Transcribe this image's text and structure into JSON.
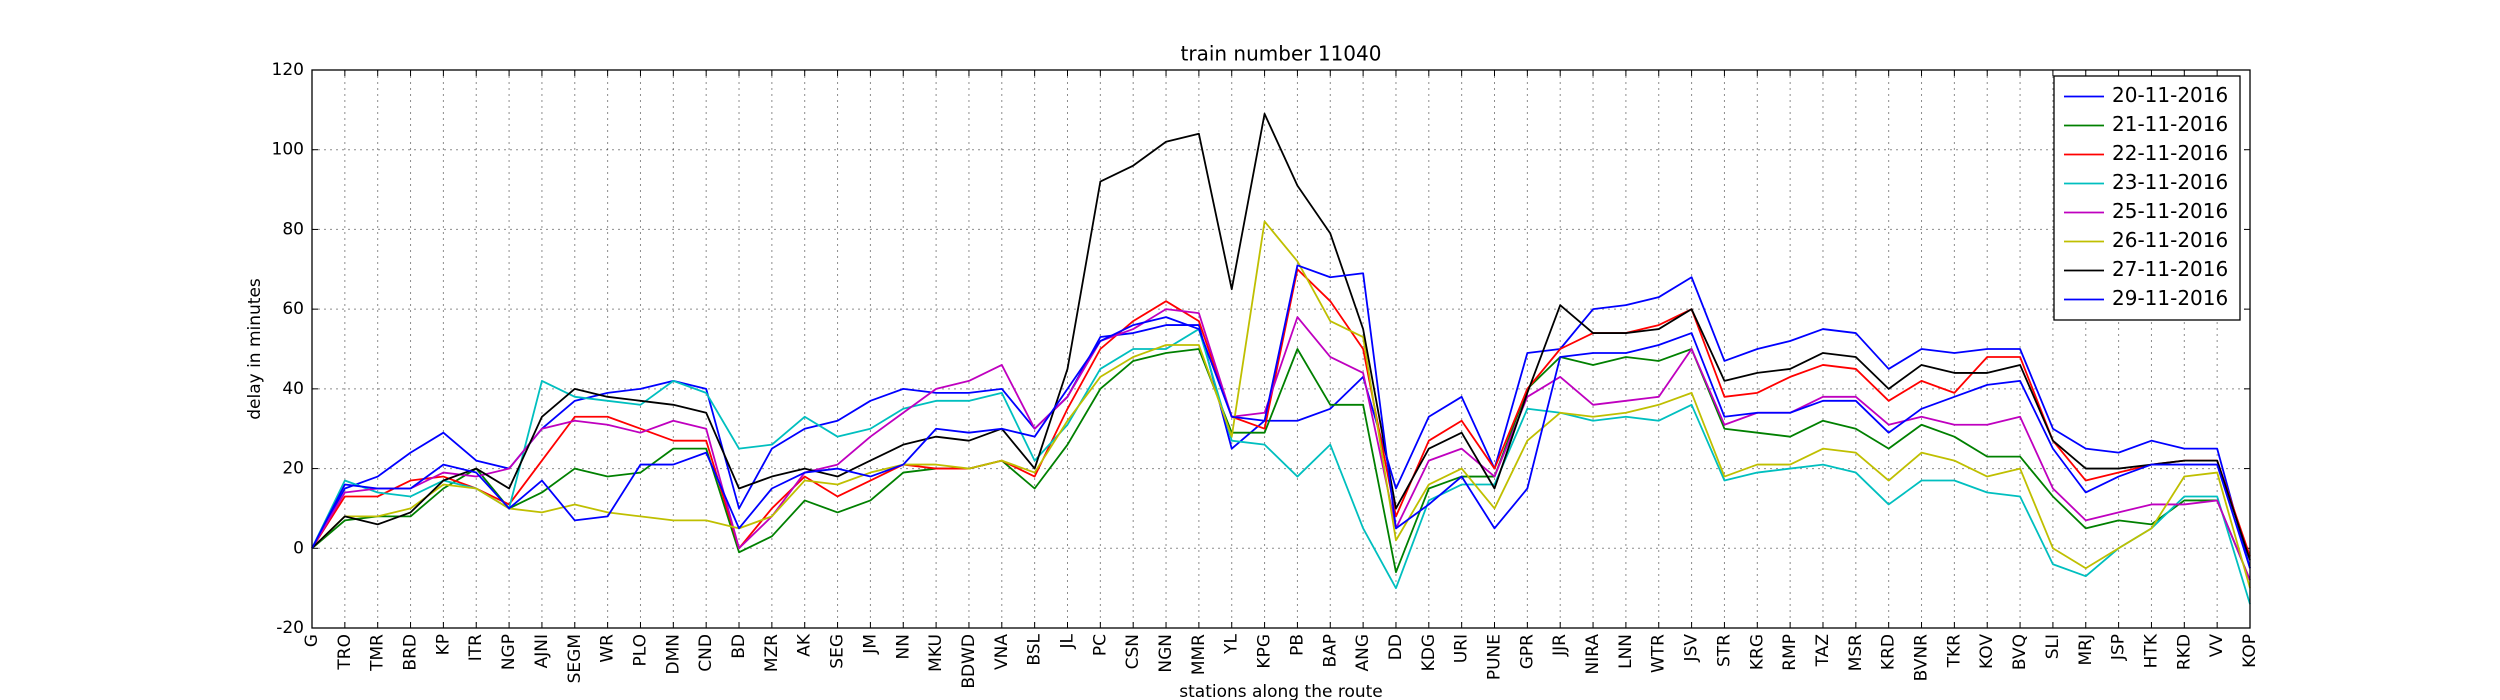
{
  "chart_data": {
    "type": "line",
    "title": "train number 11040",
    "xlabel": "stations along the route",
    "ylabel": "delay in minutes",
    "categories": [
      "G",
      "TRO",
      "TMR",
      "BRD",
      "KP",
      "ITR",
      "NGP",
      "AJNI",
      "SEGM",
      "WR",
      "PLO",
      "DMN",
      "CND",
      "BD",
      "MZR",
      "AK",
      "SEG",
      "JM",
      "NN",
      "MKU",
      "BDWD",
      "VNA",
      "BSL",
      "JL",
      "PC",
      "CSN",
      "NGN",
      "MMR",
      "YL",
      "KPG",
      "PB",
      "BAP",
      "ANG",
      "DD",
      "KDG",
      "URI",
      "PUNE",
      "GPR",
      "JJR",
      "NIRA",
      "LNN",
      "WTR",
      "JSV",
      "STR",
      "KRG",
      "RMP",
      "TAZ",
      "MSR",
      "KRD",
      "BVNR",
      "TKR",
      "KOV",
      "BVQ",
      "SLI",
      "MRJ",
      "JSP",
      "HTK",
      "RKD",
      "VV",
      "KOP"
    ],
    "series": [
      {
        "name": "20-11-2016",
        "color": "#0000ff",
        "values": [
          0,
          15,
          18,
          24,
          29,
          22,
          20,
          30,
          37,
          39,
          40,
          42,
          40,
          10,
          25,
          30,
          32,
          37,
          40,
          39,
          39,
          40,
          30,
          38,
          53,
          54,
          56,
          56,
          25,
          32,
          32,
          35,
          43,
          15,
          33,
          38,
          20,
          49,
          50,
          60,
          61,
          63,
          68,
          47,
          50,
          52,
          55,
          54,
          45,
          50,
          49,
          50,
          50,
          30,
          25,
          24,
          27,
          25,
          25,
          -5
        ]
      },
      {
        "name": "21-11-2016",
        "color": "#008000",
        "values": [
          0,
          7,
          8,
          8,
          15,
          20,
          10,
          14,
          20,
          18,
          19,
          25,
          25,
          -1,
          3,
          12,
          9,
          12,
          19,
          20,
          20,
          22,
          15,
          26,
          40,
          47,
          49,
          50,
          29,
          29,
          50,
          36,
          36,
          -6,
          15,
          18,
          18,
          40,
          48,
          46,
          48,
          47,
          50,
          30,
          29,
          28,
          32,
          30,
          25,
          31,
          28,
          23,
          23,
          13,
          5,
          7,
          6,
          12,
          12,
          -8
        ]
      },
      {
        "name": "22-11-2016",
        "color": "#ff0000",
        "values": [
          0,
          13,
          13,
          17,
          18,
          15,
          11,
          22,
          33,
          33,
          30,
          27,
          27,
          0,
          10,
          18,
          13,
          17,
          21,
          20,
          20,
          22,
          18,
          35,
          50,
          57,
          62,
          57,
          33,
          30,
          70,
          62,
          50,
          8,
          27,
          32,
          20,
          40,
          50,
          54,
          54,
          56,
          60,
          38,
          39,
          43,
          46,
          45,
          37,
          42,
          39,
          48,
          48,
          27,
          17,
          19,
          21,
          22,
          22,
          -2
        ]
      },
      {
        "name": "23-11-2016",
        "color": "#00bfbf",
        "values": [
          0,
          17,
          14,
          13,
          17,
          15,
          10,
          42,
          38,
          37,
          36,
          42,
          39,
          25,
          26,
          33,
          28,
          30,
          35,
          37,
          37,
          39,
          22,
          31,
          45,
          50,
          50,
          55,
          27,
          26,
          18,
          26,
          5,
          -10,
          12,
          16,
          16,
          35,
          34,
          32,
          33,
          32,
          36,
          17,
          19,
          20,
          21,
          19,
          11,
          17,
          17,
          14,
          13,
          -4,
          -7,
          0,
          5,
          13,
          13,
          -14
        ]
      },
      {
        "name": "25-11-2016",
        "color": "#bf00bf",
        "values": [
          0,
          14,
          15,
          15,
          19,
          18,
          20,
          30,
          32,
          31,
          29,
          32,
          30,
          0,
          8,
          19,
          21,
          28,
          34,
          40,
          42,
          46,
          30,
          38,
          52,
          55,
          60,
          59,
          33,
          34,
          58,
          48,
          44,
          5,
          22,
          25,
          18,
          38,
          43,
          36,
          37,
          38,
          50,
          31,
          34,
          34,
          38,
          38,
          31,
          33,
          31,
          31,
          33,
          15,
          7,
          9,
          11,
          11,
          12,
          -8
        ]
      },
      {
        "name": "26-11-2016",
        "color": "#bfbf00",
        "values": [
          0,
          8,
          8,
          10,
          16,
          15,
          10,
          9,
          11,
          9,
          8,
          7,
          7,
          5,
          8,
          17,
          16,
          19,
          21,
          21,
          20,
          22,
          19,
          32,
          43,
          48,
          51,
          51,
          28,
          82,
          72,
          57,
          53,
          2,
          16,
          20,
          10,
          27,
          34,
          33,
          34,
          36,
          39,
          18,
          21,
          21,
          25,
          24,
          17,
          24,
          22,
          18,
          20,
          0,
          -5,
          0,
          5,
          18,
          19,
          -10
        ]
      },
      {
        "name": "27-11-2016",
        "color": "#000000",
        "values": [
          0,
          8,
          6,
          9,
          17,
          20,
          15,
          33,
          40,
          38,
          37,
          36,
          34,
          15,
          18,
          20,
          18,
          22,
          26,
          28,
          27,
          30,
          20,
          45,
          92,
          96,
          102,
          104,
          65,
          109,
          91,
          79,
          55,
          10,
          25,
          29,
          15,
          39,
          61,
          54,
          54,
          55,
          60,
          42,
          44,
          45,
          49,
          48,
          40,
          46,
          44,
          44,
          46,
          27,
          20,
          20,
          21,
          22,
          22,
          -3
        ]
      },
      {
        "name": "29-11-2016",
        "color": "#0000ff",
        "values": [
          0,
          16,
          15,
          15,
          21,
          19,
          10,
          17,
          7,
          8,
          21,
          21,
          24,
          5,
          15,
          19,
          20,
          18,
          21,
          30,
          29,
          30,
          28,
          40,
          52,
          56,
          58,
          55,
          33,
          32,
          71,
          68,
          69,
          5,
          11,
          18,
          5,
          15,
          48,
          49,
          49,
          51,
          54,
          33,
          34,
          34,
          37,
          37,
          29,
          35,
          38,
          41,
          42,
          25,
          14,
          18,
          21,
          21,
          21,
          -5
        ]
      }
    ],
    "ylim": [
      -20,
      120
    ],
    "yticks": [
      -20,
      0,
      20,
      40,
      60,
      80,
      100,
      120
    ],
    "grid": true,
    "legend": "upper right"
  }
}
